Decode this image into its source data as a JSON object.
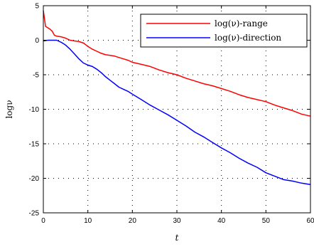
{
  "chart_data": {
    "type": "line",
    "xlabel": "t",
    "ylabel": "logν",
    "xlim": [
      0,
      60
    ],
    "ylim": [
      -25,
      5
    ],
    "xticks": [
      0,
      10,
      20,
      30,
      40,
      50,
      60
    ],
    "yticks": [
      5,
      0,
      -5,
      -10,
      -15,
      -20,
      -25
    ],
    "grid": true,
    "legend_position": "top-right",
    "series": [
      {
        "name": "log(ν)-range",
        "color": "#ff0000",
        "x": [
          0,
          0.5,
          1,
          1.5,
          2,
          2.5,
          3,
          4,
          5,
          6,
          7,
          8,
          9,
          10,
          11,
          12,
          13,
          14,
          15,
          16,
          17,
          18,
          19,
          20,
          22,
          24,
          26,
          28,
          30,
          32,
          34,
          36,
          38,
          40,
          42,
          44,
          46,
          48,
          50,
          52,
          54,
          56,
          58,
          60
        ],
        "y": [
          4.3,
          2.0,
          1.8,
          1.6,
          1.3,
          0.7,
          0.6,
          0.5,
          0.3,
          0.0,
          -0.1,
          -0.2,
          -0.4,
          -0.9,
          -1.3,
          -1.6,
          -1.9,
          -2.1,
          -2.2,
          -2.3,
          -2.5,
          -2.7,
          -2.9,
          -3.2,
          -3.5,
          -3.8,
          -4.3,
          -4.7,
          -5.0,
          -5.5,
          -5.9,
          -6.3,
          -6.6,
          -7.0,
          -7.4,
          -7.9,
          -8.3,
          -8.6,
          -8.9,
          -9.4,
          -9.8,
          -10.2,
          -10.7,
          -11.0
        ]
      },
      {
        "name": "log(ν)-direction",
        "color": "#0000ff",
        "x": [
          0,
          1,
          2,
          3,
          4,
          5,
          6,
          7,
          8,
          9,
          10,
          11,
          12,
          13,
          14,
          15,
          16,
          17,
          18,
          19,
          20,
          22,
          24,
          26,
          28,
          30,
          32,
          34,
          36,
          38,
          40,
          42,
          44,
          46,
          48,
          50,
          52,
          54,
          56,
          58,
          60
        ],
        "y": [
          -0.1,
          0.0,
          0.0,
          0.0,
          -0.3,
          -0.7,
          -1.3,
          -2.0,
          -2.7,
          -3.3,
          -3.6,
          -3.8,
          -4.2,
          -4.7,
          -5.3,
          -5.8,
          -6.3,
          -6.8,
          -7.1,
          -7.4,
          -7.8,
          -8.6,
          -9.4,
          -10.1,
          -10.8,
          -11.6,
          -12.4,
          -13.3,
          -14.0,
          -14.8,
          -15.6,
          -16.3,
          -17.1,
          -17.8,
          -18.4,
          -19.2,
          -19.7,
          -20.2,
          -20.4,
          -20.7,
          -20.9
        ]
      }
    ]
  }
}
